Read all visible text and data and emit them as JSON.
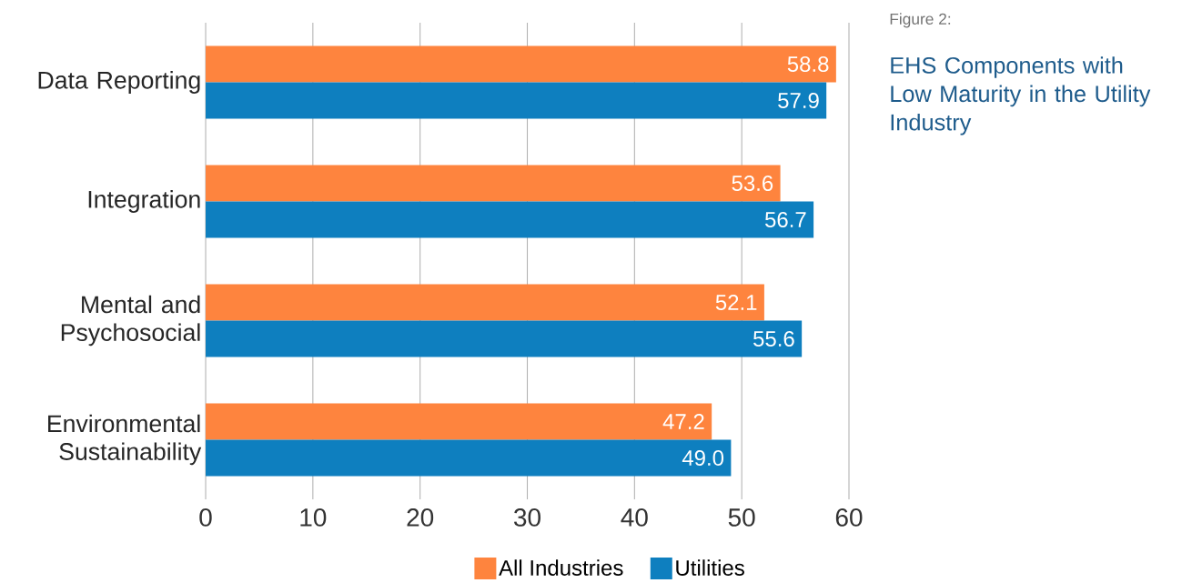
{
  "chart_data": {
    "type": "bar",
    "orientation": "horizontal",
    "title": "EHS Components with Low Maturity in the Utility Industry",
    "annotations": [
      "Figure 2:"
    ],
    "categories": [
      "Data Reporting",
      "Integration",
      "Mental and Psychosocial",
      "Environmental Sustainability"
    ],
    "series": [
      {
        "name": "All Industries",
        "color": "#fe843e",
        "values": [
          58.8,
          53.6,
          52.1,
          47.2
        ],
        "value_labels": [
          "58.8",
          "53.6",
          "52.1",
          "47.2"
        ]
      },
      {
        "name": "Utilities",
        "color": "#0e7fbf",
        "values": [
          57.9,
          56.7,
          55.6,
          49.0
        ],
        "value_labels": [
          "57.9",
          "56.7",
          "55.6",
          "49.0"
        ]
      }
    ],
    "xlim": [
      0,
      60
    ],
    "xticks": [
      0,
      10,
      20,
      30,
      40,
      50,
      60
    ],
    "grid": "x",
    "legend": "bottom"
  }
}
